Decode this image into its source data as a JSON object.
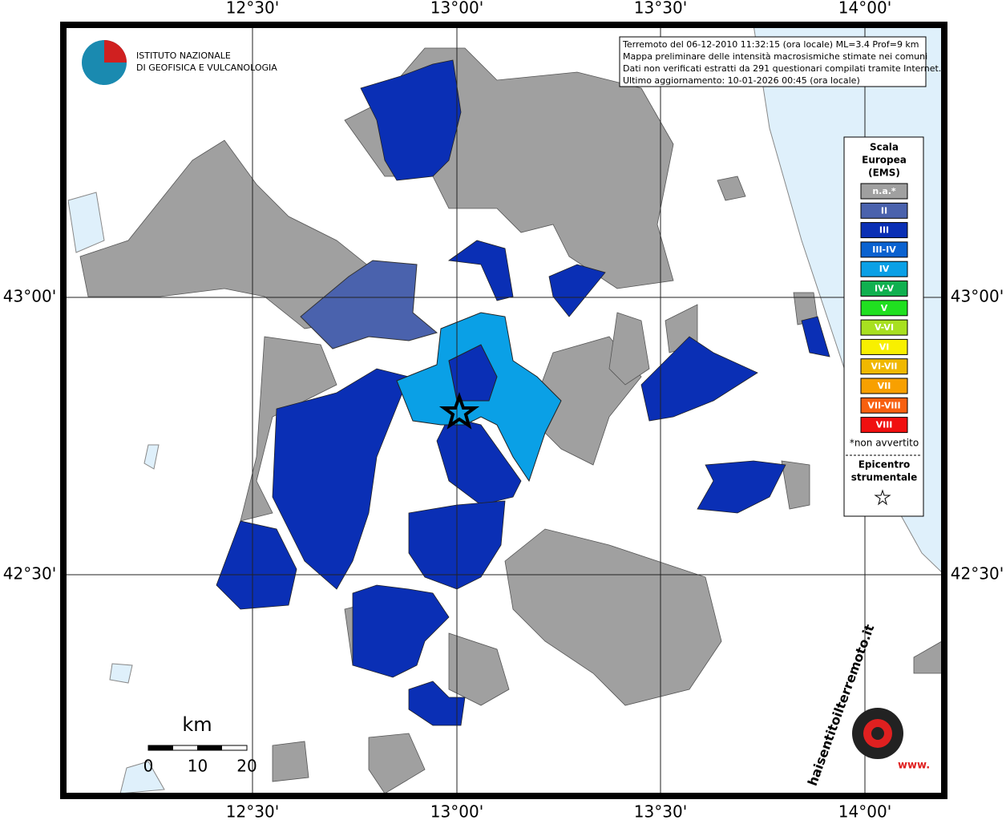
{
  "header": {
    "institute": [
      "ISTITUTO NAZIONALE",
      "DI GEOFISICA E VULCANOLOGIA"
    ]
  },
  "info": [
    "Terremoto del 06-12-2010 11:32:15 (ora locale) ML=3.4 Prof=9 km",
    "Mappa preliminare delle intensità macrosismiche stimate nei comuni",
    "Dati non verificati estratti da 291 questionari compilati tramite Internet.",
    "Ultimo aggiornamento: 10-01-2026 00:45 (ora locale)"
  ],
  "grid": {
    "longitudes": [
      "12°30'",
      "13°00'",
      "13°30'",
      "14°00'"
    ],
    "latitudes": [
      "43°00'",
      "42°30'"
    ]
  },
  "legend": {
    "title": [
      "Scala",
      "Europea",
      "(EMS)"
    ],
    "items": [
      {
        "label": "n.a.*",
        "color": "#a0a0a0"
      },
      {
        "label": "II",
        "color": "#4a62ad"
      },
      {
        "label": "III",
        "color": "#0a2fb5"
      },
      {
        "label": "III-IV",
        "color": "#0a62d0"
      },
      {
        "label": "IV",
        "color": "#0aa0e6"
      },
      {
        "label": "IV-V",
        "color": "#10b050"
      },
      {
        "label": "V",
        "color": "#20e020"
      },
      {
        "label": "V-VI",
        "color": "#a8e020"
      },
      {
        "label": "VI",
        "color": "#f8f000"
      },
      {
        "label": "VI-VII",
        "color": "#f0b800"
      },
      {
        "label": "VII",
        "color": "#f8a000"
      },
      {
        "label": "VII-VIII",
        "color": "#f86010"
      },
      {
        "label": "VIII",
        "color": "#f01010"
      }
    ],
    "note": "*non avvertito",
    "epicenter": [
      "Epicentro",
      "strumentale"
    ]
  },
  "scale": {
    "unit": "km",
    "ticks": [
      "0",
      "10",
      "20"
    ]
  },
  "footer": {
    "site": "haisentitoilterremoto.it",
    "www": "www."
  }
}
